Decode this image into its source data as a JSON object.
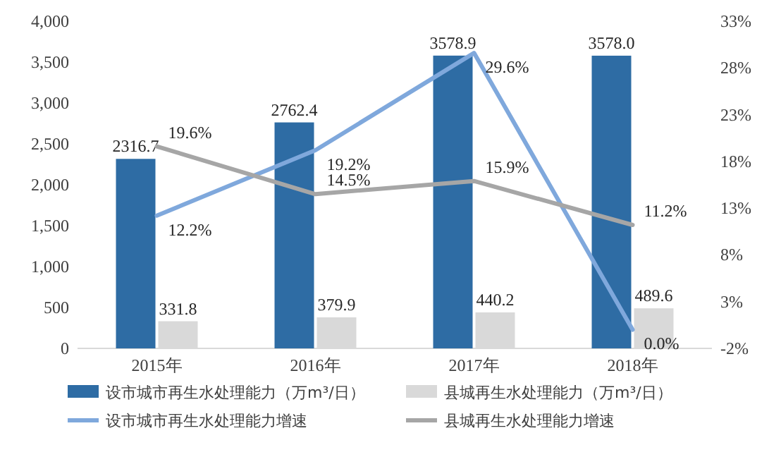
{
  "chart_data": {
    "type": "bar",
    "categories": [
      "2015年",
      "2016年",
      "2017年",
      "2018年"
    ],
    "series": [
      {
        "name": "设市城市再生水处理能力（万m³/日）",
        "color": "#2e6ca4",
        "values": [
          2316.7,
          2762.4,
          3578.9,
          3578.0
        ],
        "value_labels": [
          "2316.7",
          "2762.4",
          "3578.9",
          "3578.0"
        ]
      },
      {
        "name": "县城再生水处理能力（万m³/日）",
        "color": "#d9d9d9",
        "values": [
          331.8,
          379.9,
          440.2,
          489.6
        ],
        "value_labels": [
          "331.8",
          "379.9",
          "440.2",
          "489.6"
        ]
      },
      {
        "name": "设市城市再生水处理能力增速",
        "type": "line",
        "axis": "y2",
        "color": "#7fa8dc",
        "values": [
          12.2,
          19.2,
          29.6,
          0.0
        ],
        "value_labels": [
          "12.2%",
          "19.2%",
          "29.6%",
          "0.0%"
        ]
      },
      {
        "name": "县城再生水处理能力增速",
        "type": "line",
        "axis": "y2",
        "color": "#a6a6a6",
        "values": [
          19.6,
          14.5,
          15.9,
          11.2
        ],
        "value_labels": [
          "19.6%",
          "14.5%",
          "15.9%",
          "11.2%"
        ]
      }
    ],
    "ylim": [
      0,
      4000
    ],
    "yticks": [
      0,
      500,
      {
        "value": 1000,
        "label": "1,000"
      },
      {
        "value": 1500,
        "label": "1,500"
      },
      {
        "value": 2000,
        "label": "2,000"
      },
      {
        "value": 2500,
        "label": "2,500"
      },
      {
        "value": 3000,
        "label": "3,000"
      },
      {
        "value": 3500,
        "label": "3,500"
      },
      {
        "value": 4000,
        "label": "4,000"
      }
    ],
    "y2lim": [
      -2,
      33
    ],
    "y2ticks": [
      {
        "value": -2,
        "label": "-2%"
      },
      {
        "value": 3,
        "label": "3%"
      },
      {
        "value": 8,
        "label": "8%"
      },
      {
        "value": 13,
        "label": "13%"
      },
      {
        "value": 18,
        "label": "18%"
      },
      {
        "value": 23,
        "label": "23%"
      },
      {
        "value": 28,
        "label": "28%"
      },
      {
        "value": 33,
        "label": "33%"
      }
    ],
    "grid": false,
    "legend": "bottom"
  }
}
